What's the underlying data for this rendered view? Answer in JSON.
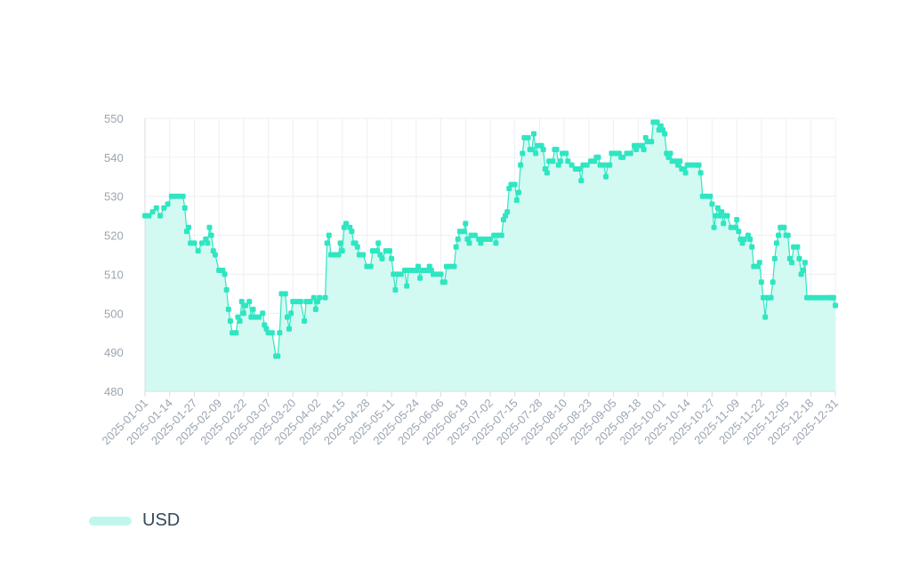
{
  "chart_data": {
    "type": "area",
    "title": "",
    "xlabel": "",
    "ylabel": "",
    "ylim": [
      480,
      550
    ],
    "y_ticks": [
      480,
      490,
      500,
      510,
      520,
      530,
      540,
      550
    ],
    "x_start": "2025-01-01",
    "x_end": "2025-12-31",
    "x_tick_labels": [
      "2025-01-01",
      "2025-01-14",
      "2025-01-27",
      "2025-02-09",
      "2025-02-22",
      "2025-03-07",
      "2025-03-20",
      "2025-04-02",
      "2025-04-15",
      "2025-04-28",
      "2025-05-11",
      "2025-05-24",
      "2025-06-06",
      "2025-06-19",
      "2025-07-02",
      "2025-07-15",
      "2025-07-28",
      "2025-08-10",
      "2025-08-23",
      "2025-09-05",
      "2025-09-18",
      "2025-10-01",
      "2025-10-14",
      "2025-10-27",
      "2025-11-09",
      "2025-11-22",
      "2025-12-05",
      "2025-12-18",
      "2025-12-31"
    ],
    "grid": true,
    "legend_position": "bottom-left",
    "series": [
      {
        "name": "USD",
        "color": "#2ee6c1",
        "fill": "#d3faf2",
        "points": [
          [
            "2025-01-01",
            525
          ],
          [
            "2025-01-03",
            525
          ],
          [
            "2025-01-05",
            526
          ],
          [
            "2025-01-07",
            527
          ],
          [
            "2025-01-09",
            525
          ],
          [
            "2025-01-11",
            527
          ],
          [
            "2025-01-13",
            528
          ],
          [
            "2025-01-15",
            530
          ],
          [
            "2025-01-17",
            530
          ],
          [
            "2025-01-19",
            530
          ],
          [
            "2025-01-21",
            530
          ],
          [
            "2025-01-22",
            527
          ],
          [
            "2025-01-23",
            521
          ],
          [
            "2025-01-24",
            522
          ],
          [
            "2025-01-25",
            518
          ],
          [
            "2025-01-27",
            518
          ],
          [
            "2025-01-29",
            516
          ],
          [
            "2025-01-31",
            518
          ],
          [
            "2025-02-02",
            519
          ],
          [
            "2025-02-03",
            518
          ],
          [
            "2025-02-04",
            522
          ],
          [
            "2025-02-05",
            520
          ],
          [
            "2025-02-06",
            516
          ],
          [
            "2025-02-07",
            515
          ],
          [
            "2025-02-09",
            511
          ],
          [
            "2025-02-11",
            511
          ],
          [
            "2025-02-12",
            510
          ],
          [
            "2025-02-13",
            506
          ],
          [
            "2025-02-14",
            501
          ],
          [
            "2025-02-15",
            498
          ],
          [
            "2025-02-16",
            495
          ],
          [
            "2025-02-18",
            495
          ],
          [
            "2025-02-19",
            499
          ],
          [
            "2025-02-20",
            498
          ],
          [
            "2025-02-21",
            503
          ],
          [
            "2025-02-22",
            500
          ],
          [
            "2025-02-23",
            502
          ],
          [
            "2025-02-25",
            503
          ],
          [
            "2025-02-26",
            499
          ],
          [
            "2025-02-27",
            501
          ],
          [
            "2025-02-28",
            499
          ],
          [
            "2025-03-02",
            499
          ],
          [
            "2025-03-04",
            500
          ],
          [
            "2025-03-05",
            497
          ],
          [
            "2025-03-06",
            496
          ],
          [
            "2025-03-07",
            495
          ],
          [
            "2025-03-09",
            495
          ],
          [
            "2025-03-11",
            489
          ],
          [
            "2025-03-12",
            489
          ],
          [
            "2025-03-13",
            495
          ],
          [
            "2025-03-14",
            505
          ],
          [
            "2025-03-16",
            505
          ],
          [
            "2025-03-17",
            499
          ],
          [
            "2025-03-18",
            496
          ],
          [
            "2025-03-19",
            500
          ],
          [
            "2025-03-20",
            503
          ],
          [
            "2025-03-22",
            503
          ],
          [
            "2025-03-24",
            503
          ],
          [
            "2025-03-26",
            498
          ],
          [
            "2025-03-27",
            503
          ],
          [
            "2025-03-29",
            503
          ],
          [
            "2025-03-31",
            504
          ],
          [
            "2025-04-01",
            501
          ],
          [
            "2025-04-02",
            503
          ],
          [
            "2025-04-03",
            504
          ],
          [
            "2025-04-06",
            504
          ],
          [
            "2025-04-07",
            518
          ],
          [
            "2025-04-08",
            520
          ],
          [
            "2025-04-09",
            515
          ],
          [
            "2025-04-11",
            515
          ],
          [
            "2025-04-13",
            515
          ],
          [
            "2025-04-14",
            518
          ],
          [
            "2025-04-15",
            516
          ],
          [
            "2025-04-16",
            522
          ],
          [
            "2025-04-17",
            523
          ],
          [
            "2025-04-19",
            522
          ],
          [
            "2025-04-20",
            521
          ],
          [
            "2025-04-21",
            518
          ],
          [
            "2025-04-22",
            518
          ],
          [
            "2025-04-23",
            517
          ],
          [
            "2025-04-24",
            515
          ],
          [
            "2025-04-26",
            515
          ],
          [
            "2025-04-28",
            512
          ],
          [
            "2025-04-30",
            512
          ],
          [
            "2025-05-01",
            516
          ],
          [
            "2025-05-03",
            516
          ],
          [
            "2025-05-04",
            518
          ],
          [
            "2025-05-05",
            515
          ],
          [
            "2025-05-06",
            514
          ],
          [
            "2025-05-08",
            516
          ],
          [
            "2025-05-10",
            516
          ],
          [
            "2025-05-11",
            514
          ],
          [
            "2025-05-12",
            510
          ],
          [
            "2025-05-13",
            506
          ],
          [
            "2025-05-14",
            510
          ],
          [
            "2025-05-16",
            510
          ],
          [
            "2025-05-18",
            511
          ],
          [
            "2025-05-19",
            507
          ],
          [
            "2025-05-20",
            511
          ],
          [
            "2025-05-22",
            511
          ],
          [
            "2025-05-24",
            511
          ],
          [
            "2025-05-25",
            512
          ],
          [
            "2025-05-26",
            509
          ],
          [
            "2025-05-27",
            511
          ],
          [
            "2025-05-29",
            511
          ],
          [
            "2025-05-30",
            511
          ],
          [
            "2025-05-31",
            512
          ],
          [
            "2025-06-01",
            511
          ],
          [
            "2025-06-02",
            510
          ],
          [
            "2025-06-04",
            510
          ],
          [
            "2025-06-06",
            510
          ],
          [
            "2025-06-07",
            508
          ],
          [
            "2025-06-08",
            508
          ],
          [
            "2025-06-09",
            512
          ],
          [
            "2025-06-11",
            512
          ],
          [
            "2025-06-13",
            512
          ],
          [
            "2025-06-14",
            517
          ],
          [
            "2025-06-15",
            519
          ],
          [
            "2025-06-16",
            521
          ],
          [
            "2025-06-18",
            521
          ],
          [
            "2025-06-19",
            523
          ],
          [
            "2025-06-20",
            519
          ],
          [
            "2025-06-21",
            518
          ],
          [
            "2025-06-22",
            520
          ],
          [
            "2025-06-24",
            520
          ],
          [
            "2025-06-26",
            519
          ],
          [
            "2025-06-27",
            518
          ],
          [
            "2025-06-28",
            519
          ],
          [
            "2025-06-30",
            519
          ],
          [
            "2025-07-02",
            519
          ],
          [
            "2025-07-04",
            520
          ],
          [
            "2025-07-05",
            518
          ],
          [
            "2025-07-06",
            520
          ],
          [
            "2025-07-08",
            520
          ],
          [
            "2025-07-09",
            524
          ],
          [
            "2025-07-10",
            525
          ],
          [
            "2025-07-11",
            526
          ],
          [
            "2025-07-12",
            532
          ],
          [
            "2025-07-13",
            533
          ],
          [
            "2025-07-15",
            533
          ],
          [
            "2025-07-16",
            529
          ],
          [
            "2025-07-17",
            531
          ],
          [
            "2025-07-18",
            538
          ],
          [
            "2025-07-19",
            541
          ],
          [
            "2025-07-20",
            545
          ],
          [
            "2025-07-22",
            545
          ],
          [
            "2025-07-23",
            542
          ],
          [
            "2025-07-24",
            542
          ],
          [
            "2025-07-25",
            546
          ],
          [
            "2025-07-26",
            541
          ],
          [
            "2025-07-27",
            543
          ],
          [
            "2025-07-29",
            543
          ],
          [
            "2025-07-30",
            542
          ],
          [
            "2025-07-31",
            537
          ],
          [
            "2025-08-01",
            536
          ],
          [
            "2025-08-02",
            539
          ],
          [
            "2025-08-04",
            539
          ],
          [
            "2025-08-05",
            542
          ],
          [
            "2025-08-06",
            542
          ],
          [
            "2025-08-07",
            538
          ],
          [
            "2025-08-08",
            539
          ],
          [
            "2025-08-09",
            541
          ],
          [
            "2025-08-11",
            541
          ],
          [
            "2025-08-12",
            539
          ],
          [
            "2025-08-14",
            538
          ],
          [
            "2025-08-16",
            537
          ],
          [
            "2025-08-18",
            537
          ],
          [
            "2025-08-19",
            534
          ],
          [
            "2025-08-20",
            538
          ],
          [
            "2025-08-22",
            538
          ],
          [
            "2025-08-24",
            539
          ],
          [
            "2025-08-26",
            539
          ],
          [
            "2025-08-27",
            540
          ],
          [
            "2025-08-28",
            540
          ],
          [
            "2025-08-29",
            538
          ],
          [
            "2025-08-31",
            538
          ],
          [
            "2025-09-01",
            535
          ],
          [
            "2025-09-02",
            538
          ],
          [
            "2025-09-03",
            538
          ],
          [
            "2025-09-04",
            541
          ],
          [
            "2025-09-06",
            541
          ],
          [
            "2025-09-08",
            541
          ],
          [
            "2025-09-09",
            540
          ],
          [
            "2025-09-10",
            540
          ],
          [
            "2025-09-12",
            541
          ],
          [
            "2025-09-14",
            541
          ],
          [
            "2025-09-16",
            543
          ],
          [
            "2025-09-17",
            542
          ],
          [
            "2025-09-18",
            543
          ],
          [
            "2025-09-20",
            543
          ],
          [
            "2025-09-21",
            542
          ],
          [
            "2025-09-22",
            545
          ],
          [
            "2025-09-23",
            544
          ],
          [
            "2025-09-25",
            544
          ],
          [
            "2025-09-26",
            549
          ],
          [
            "2025-09-28",
            549
          ],
          [
            "2025-09-29",
            547
          ],
          [
            "2025-09-30",
            548
          ],
          [
            "2025-10-01",
            547
          ],
          [
            "2025-10-02",
            546
          ],
          [
            "2025-10-03",
            541
          ],
          [
            "2025-10-04",
            540
          ],
          [
            "2025-10-05",
            541
          ],
          [
            "2025-10-06",
            539
          ],
          [
            "2025-10-08",
            539
          ],
          [
            "2025-10-09",
            538
          ],
          [
            "2025-10-10",
            539
          ],
          [
            "2025-10-11",
            537
          ],
          [
            "2025-10-12",
            537
          ],
          [
            "2025-10-13",
            536
          ],
          [
            "2025-10-14",
            538
          ],
          [
            "2025-10-16",
            538
          ],
          [
            "2025-10-18",
            538
          ],
          [
            "2025-10-19",
            538
          ],
          [
            "2025-10-20",
            538
          ],
          [
            "2025-10-21",
            536
          ],
          [
            "2025-10-22",
            530
          ],
          [
            "2025-10-24",
            530
          ],
          [
            "2025-10-26",
            530
          ],
          [
            "2025-10-27",
            528
          ],
          [
            "2025-10-28",
            522
          ],
          [
            "2025-10-29",
            525
          ],
          [
            "2025-10-30",
            527
          ],
          [
            "2025-10-31",
            525
          ],
          [
            "2025-11-01",
            526
          ],
          [
            "2025-11-02",
            523
          ],
          [
            "2025-11-03",
            525
          ],
          [
            "2025-11-04",
            525
          ],
          [
            "2025-11-06",
            522
          ],
          [
            "2025-11-08",
            522
          ],
          [
            "2025-11-09",
            524
          ],
          [
            "2025-11-10",
            521
          ],
          [
            "2025-11-11",
            519
          ],
          [
            "2025-11-12",
            518
          ],
          [
            "2025-11-13",
            519
          ],
          [
            "2025-11-15",
            520
          ],
          [
            "2025-11-16",
            519
          ],
          [
            "2025-11-17",
            517
          ],
          [
            "2025-11-18",
            512
          ],
          [
            "2025-11-20",
            512
          ],
          [
            "2025-11-21",
            513
          ],
          [
            "2025-11-22",
            508
          ],
          [
            "2025-11-23",
            504
          ],
          [
            "2025-11-24",
            499
          ],
          [
            "2025-11-25",
            504
          ],
          [
            "2025-11-26",
            504
          ],
          [
            "2025-11-27",
            504
          ],
          [
            "2025-11-28",
            508
          ],
          [
            "2025-11-29",
            514
          ],
          [
            "2025-11-30",
            518
          ],
          [
            "2025-12-01",
            520
          ],
          [
            "2025-12-02",
            522
          ],
          [
            "2025-12-03",
            522
          ],
          [
            "2025-12-04",
            522
          ],
          [
            "2025-12-05",
            520
          ],
          [
            "2025-12-06",
            520
          ],
          [
            "2025-12-07",
            514
          ],
          [
            "2025-12-08",
            513
          ],
          [
            "2025-12-09",
            517
          ],
          [
            "2025-12-11",
            517
          ],
          [
            "2025-12-12",
            514
          ],
          [
            "2025-12-13",
            510
          ],
          [
            "2025-12-14",
            511
          ],
          [
            "2025-12-15",
            513
          ],
          [
            "2025-12-16",
            504
          ],
          [
            "2025-12-18",
            504
          ],
          [
            "2025-12-20",
            504
          ],
          [
            "2025-12-22",
            504
          ],
          [
            "2025-12-24",
            504
          ],
          [
            "2025-12-26",
            504
          ],
          [
            "2025-12-28",
            504
          ],
          [
            "2025-12-29",
            504
          ],
          [
            "2025-12-30",
            504
          ],
          [
            "2025-12-31",
            502
          ]
        ]
      }
    ]
  },
  "legend": {
    "label": "USD",
    "color": "#bff7ec"
  }
}
